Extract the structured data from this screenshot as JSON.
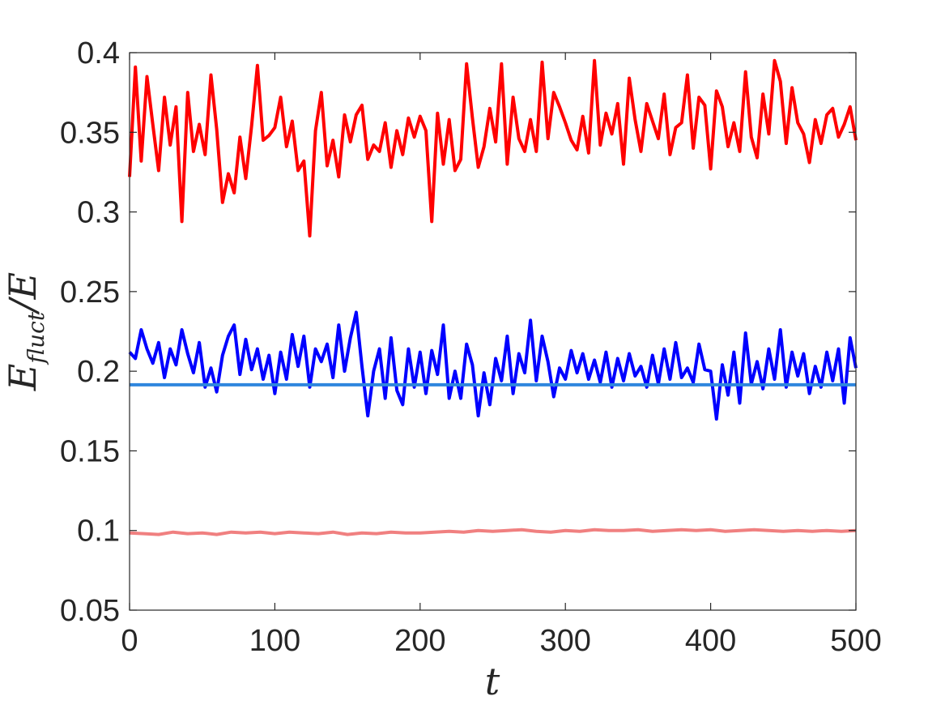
{
  "chart_data": {
    "type": "line",
    "title": "",
    "xlabel": "t",
    "ylabel": {
      "main": "E",
      "sub": "fluct",
      "suffix": "/E"
    },
    "xlim": [
      0,
      500
    ],
    "ylim": [
      0.05,
      0.4
    ],
    "x_ticks": [
      0,
      100,
      200,
      300,
      400,
      500
    ],
    "x_tick_labels": [
      "0",
      "100",
      "200",
      "300",
      "400",
      "500"
    ],
    "y_ticks": [
      0.05,
      0.1,
      0.15,
      0.2,
      0.25,
      0.3,
      0.35,
      0.4
    ],
    "y_tick_labels": [
      "0.05",
      "0.1",
      "0.15",
      "0.2",
      "0.25",
      "0.3",
      "0.35",
      "0.4"
    ],
    "grid": false,
    "legend": "none",
    "series": [
      {
        "color": "#ff0000",
        "x": [
          0,
          4,
          8,
          12,
          16,
          20,
          24,
          28,
          32,
          36,
          40,
          44,
          48,
          52,
          56,
          60,
          64,
          68,
          72,
          76,
          80,
          84,
          88,
          92,
          96,
          100,
          104,
          108,
          112,
          116,
          120,
          124,
          128,
          132,
          136,
          140,
          144,
          148,
          152,
          156,
          160,
          164,
          168,
          172,
          176,
          180,
          184,
          188,
          192,
          196,
          200,
          204,
          208,
          212,
          216,
          220,
          224,
          228,
          232,
          236,
          240,
          244,
          248,
          252,
          256,
          260,
          264,
          268,
          272,
          276,
          280,
          284,
          288,
          292,
          296,
          300,
          304,
          308,
          312,
          316,
          320,
          324,
          328,
          332,
          336,
          340,
          344,
          348,
          352,
          356,
          360,
          364,
          368,
          372,
          376,
          380,
          384,
          388,
          392,
          396,
          400,
          404,
          408,
          412,
          416,
          420,
          424,
          428,
          432,
          436,
          440,
          444,
          448,
          452,
          456,
          460,
          464,
          468,
          472,
          476,
          480,
          484,
          488,
          492,
          496,
          500
        ],
        "y": [
          0.322,
          0.391,
          0.332,
          0.385,
          0.355,
          0.326,
          0.372,
          0.342,
          0.366,
          0.294,
          0.375,
          0.338,
          0.355,
          0.336,
          0.386,
          0.352,
          0.306,
          0.324,
          0.312,
          0.347,
          0.321,
          0.354,
          0.392,
          0.345,
          0.348,
          0.353,
          0.372,
          0.341,
          0.357,
          0.326,
          0.332,
          0.285,
          0.351,
          0.375,
          0.329,
          0.345,
          0.322,
          0.361,
          0.344,
          0.361,
          0.367,
          0.333,
          0.342,
          0.338,
          0.356,
          0.328,
          0.351,
          0.336,
          0.359,
          0.347,
          0.36,
          0.351,
          0.294,
          0.362,
          0.33,
          0.358,
          0.326,
          0.333,
          0.393,
          0.359,
          0.328,
          0.341,
          0.365,
          0.344,
          0.393,
          0.33,
          0.372,
          0.346,
          0.338,
          0.358,
          0.338,
          0.394,
          0.346,
          0.375,
          0.366,
          0.356,
          0.345,
          0.339,
          0.36,
          0.337,
          0.395,
          0.342,
          0.362,
          0.349,
          0.368,
          0.33,
          0.384,
          0.358,
          0.338,
          0.368,
          0.357,
          0.346,
          0.374,
          0.336,
          0.353,
          0.356,
          0.386,
          0.34,
          0.372,
          0.367,
          0.327,
          0.376,
          0.366,
          0.341,
          0.356,
          0.338,
          0.388,
          0.347,
          0.334,
          0.374,
          0.349,
          0.395,
          0.382,
          0.343,
          0.378,
          0.356,
          0.349,
          0.331,
          0.358,
          0.343,
          0.361,
          0.365,
          0.347,
          0.355,
          0.366,
          0.345
        ]
      },
      {
        "color": "#0000ff",
        "x": [
          0,
          4,
          8,
          12,
          16,
          20,
          24,
          28,
          32,
          36,
          40,
          44,
          48,
          52,
          56,
          60,
          64,
          68,
          72,
          76,
          80,
          84,
          88,
          92,
          96,
          100,
          104,
          108,
          112,
          116,
          120,
          124,
          128,
          132,
          136,
          140,
          144,
          148,
          152,
          156,
          160,
          164,
          168,
          172,
          176,
          180,
          184,
          188,
          192,
          196,
          200,
          204,
          208,
          212,
          216,
          220,
          224,
          228,
          232,
          236,
          240,
          244,
          248,
          252,
          256,
          260,
          264,
          268,
          272,
          276,
          280,
          284,
          288,
          292,
          296,
          300,
          304,
          308,
          312,
          316,
          320,
          324,
          328,
          332,
          336,
          340,
          344,
          348,
          352,
          356,
          360,
          364,
          368,
          372,
          376,
          380,
          384,
          388,
          392,
          396,
          400,
          404,
          408,
          412,
          416,
          420,
          424,
          428,
          432,
          436,
          440,
          444,
          448,
          452,
          456,
          460,
          464,
          468,
          472,
          476,
          480,
          484,
          488,
          492,
          496,
          500
        ],
        "y": [
          0.212,
          0.208,
          0.226,
          0.214,
          0.205,
          0.218,
          0.196,
          0.214,
          0.204,
          0.226,
          0.211,
          0.199,
          0.218,
          0.19,
          0.202,
          0.187,
          0.21,
          0.222,
          0.229,
          0.198,
          0.22,
          0.201,
          0.214,
          0.195,
          0.21,
          0.186,
          0.212,
          0.195,
          0.223,
          0.203,
          0.222,
          0.19,
          0.214,
          0.206,
          0.217,
          0.196,
          0.229,
          0.2,
          0.221,
          0.237,
          0.203,
          0.172,
          0.2,
          0.214,
          0.183,
          0.221,
          0.188,
          0.179,
          0.214,
          0.19,
          0.212,
          0.186,
          0.213,
          0.198,
          0.229,
          0.183,
          0.2,
          0.183,
          0.217,
          0.204,
          0.172,
          0.199,
          0.179,
          0.208,
          0.194,
          0.222,
          0.186,
          0.211,
          0.199,
          0.232,
          0.194,
          0.222,
          0.206,
          0.184,
          0.202,
          0.195,
          0.213,
          0.199,
          0.211,
          0.195,
          0.207,
          0.193,
          0.212,
          0.19,
          0.208,
          0.194,
          0.211,
          0.197,
          0.203,
          0.19,
          0.21,
          0.192,
          0.214,
          0.195,
          0.218,
          0.196,
          0.202,
          0.193,
          0.217,
          0.201,
          0.2,
          0.17,
          0.204,
          0.185,
          0.212,
          0.18,
          0.224,
          0.192,
          0.206,
          0.189,
          0.214,
          0.195,
          0.226,
          0.19,
          0.212,
          0.197,
          0.211,
          0.186,
          0.203,
          0.19,
          0.212,
          0.194,
          0.214,
          0.18,
          0.221,
          0.202
        ]
      },
      {
        "color": "#2e86de",
        "x": [
          0,
          100,
          200,
          300,
          400,
          500
        ],
        "y": [
          0.1915,
          0.1915,
          0.1915,
          0.1915,
          0.1915,
          0.1915
        ]
      },
      {
        "color": "#f08080",
        "x": [
          0,
          10,
          20,
          30,
          40,
          50,
          60,
          70,
          80,
          90,
          100,
          110,
          120,
          130,
          140,
          150,
          160,
          170,
          180,
          190,
          200,
          210,
          220,
          230,
          240,
          250,
          260,
          270,
          280,
          290,
          300,
          310,
          320,
          330,
          340,
          350,
          360,
          370,
          380,
          390,
          400,
          410,
          420,
          430,
          440,
          450,
          460,
          470,
          480,
          490,
          500
        ],
        "y": [
          0.0985,
          0.098,
          0.0975,
          0.099,
          0.098,
          0.0985,
          0.0975,
          0.099,
          0.0985,
          0.099,
          0.098,
          0.099,
          0.0985,
          0.098,
          0.099,
          0.0975,
          0.0985,
          0.098,
          0.099,
          0.0985,
          0.0985,
          0.099,
          0.0995,
          0.099,
          0.1,
          0.0995,
          0.1,
          0.1005,
          0.0995,
          0.099,
          0.1,
          0.0995,
          0.1005,
          0.1,
          0.1,
          0.1005,
          0.0995,
          0.1,
          0.1005,
          0.1,
          0.1005,
          0.0995,
          0.1,
          0.1005,
          0.1,
          0.0995,
          0.1,
          0.0995,
          0.1,
          0.0995,
          0.1
        ]
      }
    ]
  }
}
